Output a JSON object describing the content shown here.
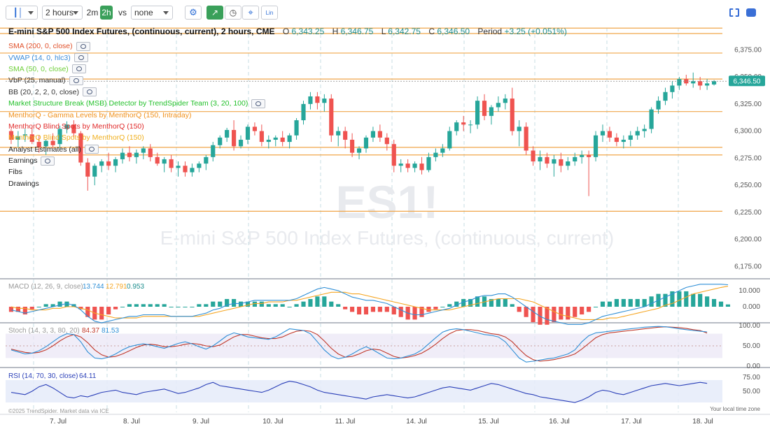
{
  "toolbar": {
    "interval": "2 hours",
    "quick_2m": "2m",
    "quick_2h": "2h",
    "vs_label": "vs",
    "compare": "none",
    "lin": "Lin"
  },
  "header": {
    "title": "E-mini S&P 500 Index Futures, (continuous, current), 2 hours, CME",
    "o_label": "O",
    "o": "6,343.25",
    "h_label": "H",
    "h": "6,346.75",
    "l_label": "L",
    "l": "6,342.75",
    "c_label": "C",
    "c": "6,346.50",
    "period_label": "Period",
    "period": "+3.25 (+0.051%)"
  },
  "indicators": [
    {
      "label": "SMA (200, 0, close)",
      "color": "#e0502a",
      "eye": true
    },
    {
      "label": "VWAP (14, 0, hlc3)",
      "color": "#3a8bd8",
      "eye": true
    },
    {
      "label": "SMA (50, 0, close)",
      "color": "#6fcf3a",
      "eye": true
    },
    {
      "label": "VbP (25, manual)",
      "color": "#333333",
      "eye": true
    },
    {
      "label": "BB (20, 2, 2, 0, close)",
      "color": "#333333",
      "eye": true
    },
    {
      "label": "Market Structure Break (MSB) Detector by TrendSpider Team (3, 20, 100)",
      "color": "#22c02a",
      "eye": true
    },
    {
      "label": "MenthorQ - Gamma Levels by MenthorQ (150, Intraday)",
      "color": "#f0901a",
      "eye": false
    },
    {
      "label": "MenthorQ Blind Spots by MenthorQ (150)",
      "color": "#e02a2a",
      "eye": false
    },
    {
      "label": "MenthorQ Blind Spots by MenthorQ (150)",
      "color": "#f0b020",
      "eye": false
    },
    {
      "label": "Analyst Estimates (all)",
      "color": "#222222",
      "eye": true
    },
    {
      "label": "Earnings",
      "color": "#222222",
      "eye": true
    },
    {
      "label": "Fibs",
      "color": "#222222",
      "eye": false
    },
    {
      "label": "Drawings",
      "color": "#222222",
      "eye": false
    }
  ],
  "watermark": {
    "symbol": "ES1!",
    "name": "E-mini S&P 500 Index Futures, (continuous, current)"
  },
  "panels": {
    "macd": {
      "label": "MACD (12, 26, 9, close)",
      "v1": "13.744",
      "v2": "12.791",
      "v3": "0.953",
      "ticks": [
        "10.000",
        "0.000"
      ]
    },
    "stoch": {
      "label": "Stoch (14, 3, 3, 80, 20)",
      "v1": "84.37",
      "v2": "81.53",
      "ticks": [
        "100.00",
        "50.00",
        "0.00"
      ]
    },
    "rsi": {
      "label": "RSI (14, 70, 30, close)",
      "v1": "64.11",
      "ticks": [
        "75.00",
        "50.00"
      ]
    }
  },
  "credit": "©2025 TrendSpider. Market data via ICE",
  "timezone": "Your local time zone",
  "colors": {
    "up": "#26a69a",
    "down": "#ef5350",
    "gamma": "#f0a64a",
    "macd": "#2f8fd6",
    "signal": "#f5a623",
    "stoch_k": "#2f8fd6",
    "stoch_d": "#c0392b",
    "rsi": "#2a3fb8"
  },
  "chart_data": {
    "type": "candlestick",
    "symbol": "E-mini S&P 500 Index Futures, (continuous, current)",
    "interval": "2 hours",
    "x_ticks": [
      "7. Jul",
      "8. Jul",
      "9. Jul",
      "10. Jul",
      "11. Jul",
      "14. Jul",
      "15. Jul",
      "16. Jul",
      "17. Jul",
      "18. Jul"
    ],
    "y_ticks": [
      "6,375.00",
      "6,350.00",
      "6,325.00",
      "6,300.00",
      "6,275.00",
      "6,250.00",
      "6,225.00",
      "6,200.00",
      "6,175.00"
    ],
    "ylim": [
      6165,
      6390
    ],
    "last_price": "6,346.50",
    "gamma_levels": [
      6395,
      6390,
      6372,
      6348,
      6318,
      6285,
      6278,
      6226
    ],
    "candles": [
      [
        6300,
        6302,
        6288,
        6292
      ],
      [
        6292,
        6300,
        6285,
        6295
      ],
      [
        6296,
        6302,
        6290,
        6297
      ],
      [
        6297,
        6303,
        6288,
        6290
      ],
      [
        6290,
        6296,
        6280,
        6285
      ],
      [
        6286,
        6292,
        6278,
        6291
      ],
      [
        6291,
        6298,
        6284,
        6287
      ],
      [
        6288,
        6305,
        6284,
        6302
      ],
      [
        6302,
        6309,
        6298,
        6306
      ],
      [
        6306,
        6310,
        6294,
        6298
      ],
      [
        6298,
        6300,
        6268,
        6271
      ],
      [
        6271,
        6275,
        6245,
        6258
      ],
      [
        6258,
        6270,
        6250,
        6268
      ],
      [
        6268,
        6274,
        6262,
        6272
      ],
      [
        6272,
        6280,
        6264,
        6268
      ],
      [
        6268,
        6276,
        6262,
        6274
      ],
      [
        6274,
        6284,
        6270,
        6280
      ],
      [
        6280,
        6286,
        6272,
        6276
      ],
      [
        6276,
        6283,
        6270,
        6280
      ],
      [
        6280,
        6286,
        6274,
        6284
      ],
      [
        6284,
        6288,
        6272,
        6276
      ],
      [
        6276,
        6280,
        6268,
        6270
      ],
      [
        6270,
        6276,
        6262,
        6274
      ],
      [
        6274,
        6278,
        6262,
        6266
      ],
      [
        6266,
        6272,
        6258,
        6268
      ],
      [
        6268,
        6272,
        6258,
        6262
      ],
      [
        6262,
        6270,
        6258,
        6266
      ],
      [
        6266,
        6272,
        6262,
        6270
      ],
      [
        6270,
        6278,
        6264,
        6276
      ],
      [
        6276,
        6290,
        6272,
        6287
      ],
      [
        6287,
        6296,
        6284,
        6294
      ],
      [
        6294,
        6303,
        6290,
        6301
      ],
      [
        6301,
        6310,
        6282,
        6286
      ],
      [
        6286,
        6296,
        6284,
        6292
      ],
      [
        6292,
        6306,
        6288,
        6304
      ],
      [
        6304,
        6308,
        6296,
        6300
      ],
      [
        6300,
        6306,
        6286,
        6290
      ],
      [
        6290,
        6296,
        6284,
        6292
      ],
      [
        6292,
        6296,
        6286,
        6294
      ],
      [
        6294,
        6300,
        6286,
        6290
      ],
      [
        6290,
        6298,
        6284,
        6296
      ],
      [
        6296,
        6312,
        6292,
        6310
      ],
      [
        6310,
        6328,
        6306,
        6325
      ],
      [
        6325,
        6336,
        6320,
        6332
      ],
      [
        6332,
        6336,
        6320,
        6326
      ],
      [
        6326,
        6334,
        6318,
        6330
      ],
      [
        6330,
        6334,
        6290,
        6296
      ],
      [
        6296,
        6304,
        6286,
        6300
      ],
      [
        6300,
        6304,
        6284,
        6292
      ],
      [
        6292,
        6298,
        6276,
        6280
      ],
      [
        6280,
        6286,
        6274,
        6284
      ],
      [
        6284,
        6296,
        6280,
        6294
      ],
      [
        6294,
        6304,
        6290,
        6300
      ],
      [
        6300,
        6306,
        6290,
        6294
      ],
      [
        6294,
        6298,
        6282,
        6288
      ],
      [
        6288,
        6292,
        6262,
        6268
      ],
      [
        6268,
        6274,
        6262,
        6270
      ],
      [
        6270,
        6274,
        6262,
        6266
      ],
      [
        6266,
        6272,
        6262,
        6270
      ],
      [
        6270,
        6276,
        6260,
        6264
      ],
      [
        6264,
        6280,
        6262,
        6276
      ],
      [
        6276,
        6284,
        6272,
        6280
      ],
      [
        6280,
        6288,
        6276,
        6284
      ],
      [
        6284,
        6304,
        6282,
        6300
      ],
      [
        6300,
        6310,
        6296,
        6308
      ],
      [
        6308,
        6314,
        6300,
        6306
      ],
      [
        6306,
        6310,
        6298,
        6306
      ],
      [
        6306,
        6332,
        6302,
        6328
      ],
      [
        6328,
        6334,
        6310,
        6314
      ],
      [
        6314,
        6324,
        6306,
        6322
      ],
      [
        6322,
        6332,
        6318,
        6326
      ],
      [
        6326,
        6334,
        6320,
        6330
      ],
      [
        6330,
        6340,
        6296,
        6300
      ],
      [
        6300,
        6310,
        6286,
        6304
      ],
      [
        6304,
        6308,
        6278,
        6282
      ],
      [
        6282,
        6286,
        6268,
        6272
      ],
      [
        6272,
        6282,
        6264,
        6276
      ],
      [
        6276,
        6280,
        6266,
        6270
      ],
      [
        6270,
        6278,
        6258,
        6274
      ],
      [
        6274,
        6280,
        6262,
        6268
      ],
      [
        6268,
        6276,
        6264,
        6272
      ],
      [
        6272,
        6280,
        6268,
        6276
      ],
      [
        6276,
        6282,
        6270,
        6278
      ],
      [
        6278,
        6282,
        6240,
        6276
      ],
      [
        6276,
        6300,
        6272,
        6296
      ],
      [
        6296,
        6306,
        6290,
        6300
      ],
      [
        6300,
        6304,
        6290,
        6294
      ],
      [
        6294,
        6298,
        6286,
        6290
      ],
      [
        6290,
        6296,
        6284,
        6292
      ],
      [
        6292,
        6300,
        6286,
        6296
      ],
      [
        6296,
        6304,
        6292,
        6300
      ],
      [
        6300,
        6306,
        6294,
        6302
      ],
      [
        6302,
        6322,
        6298,
        6320
      ],
      [
        6320,
        6332,
        6316,
        6328
      ],
      [
        6328,
        6340,
        6324,
        6336
      ],
      [
        6336,
        6346,
        6330,
        6342
      ],
      [
        6342,
        6350,
        6338,
        6348
      ],
      [
        6348,
        6352,
        6342,
        6344
      ],
      [
        6344,
        6354,
        6340,
        6346
      ],
      [
        6346,
        6350,
        6338,
        6342
      ],
      [
        6342,
        6348,
        6338,
        6344
      ],
      [
        6343,
        6347,
        6342,
        6346
      ]
    ],
    "macd": [
      -2,
      -3,
      -4,
      -3,
      -2,
      -1,
      0,
      1,
      2,
      1,
      -2,
      -6,
      -9,
      -10,
      -9,
      -8,
      -7,
      -6,
      -6,
      -5,
      -5,
      -5,
      -5,
      -6,
      -6,
      -6,
      -6,
      -5,
      -4,
      -2,
      -1,
      1,
      2,
      2,
      3,
      4,
      4,
      4,
      4,
      4,
      4,
      5,
      7,
      9,
      11,
      12,
      11,
      10,
      8,
      6,
      5,
      4,
      4,
      3,
      2,
      0,
      -2,
      -4,
      -5,
      -5,
      -4,
      -3,
      -2,
      -1,
      1,
      3,
      4,
      6,
      7,
      7,
      8,
      8,
      6,
      3,
      0,
      -3,
      -6,
      -8,
      -9,
      -10,
      -11,
      -11,
      -11,
      -10,
      -8,
      -6,
      -5,
      -4,
      -3,
      -2,
      -1,
      0,
      2,
      4,
      6,
      8,
      10,
      12,
      13,
      14,
      14,
      14,
      14,
      13.7
    ],
    "macd_signal": [
      0,
      -1,
      -1,
      -2,
      -2,
      -2,
      -1,
      -1,
      0,
      0,
      -1,
      -2,
      -4,
      -5,
      -6,
      -7,
      -7,
      -7,
      -7,
      -6,
      -6,
      -6,
      -6,
      -6,
      -6,
      -6,
      -6,
      -6,
      -5,
      -4,
      -3,
      -2,
      -1,
      0,
      1,
      2,
      2,
      3,
      3,
      3,
      4,
      4,
      5,
      6,
      7,
      8,
      9,
      9,
      9,
      8,
      8,
      7,
      6,
      5,
      4,
      3,
      2,
      1,
      0,
      -1,
      -2,
      -2,
      -2,
      -2,
      -1,
      0,
      1,
      2,
      3,
      4,
      5,
      5,
      5,
      5,
      4,
      3,
      1,
      -1,
      -3,
      -5,
      -6,
      -7,
      -8,
      -8,
      -8,
      -8,
      -7,
      -7,
      -6,
      -5,
      -4,
      -3,
      -2,
      -1,
      1,
      2,
      4,
      6,
      8,
      9,
      10,
      11,
      12,
      12.8
    ],
    "stoch_k": [
      40,
      35,
      30,
      32,
      38,
      48,
      60,
      72,
      80,
      78,
      60,
      35,
      20,
      18,
      22,
      30,
      40,
      48,
      52,
      55,
      52,
      48,
      44,
      50,
      56,
      60,
      55,
      48,
      42,
      50,
      62,
      75,
      82,
      78,
      72,
      70,
      68,
      66,
      72,
      82,
      92,
      90,
      88,
      80,
      60,
      40,
      25,
      18,
      22,
      30,
      40,
      48,
      40,
      30,
      20,
      18,
      20,
      25,
      30,
      40,
      55,
      70,
      84,
      90,
      92,
      90,
      86,
      82,
      78,
      76,
      72,
      60,
      40,
      20,
      10,
      12,
      15,
      18,
      20,
      25,
      30,
      40,
      60,
      75,
      82,
      84,
      86,
      88,
      90,
      92,
      94,
      96,
      97,
      98,
      97,
      95,
      92,
      90,
      88,
      86,
      84.4
    ],
    "stoch_d": [
      42,
      38,
      34,
      32,
      34,
      40,
      50,
      62,
      72,
      78,
      72,
      58,
      40,
      28,
      22,
      24,
      30,
      38,
      46,
      52,
      54,
      52,
      48,
      48,
      50,
      54,
      56,
      54,
      50,
      48,
      52,
      62,
      72,
      78,
      78,
      74,
      70,
      68,
      68,
      72,
      80,
      86,
      88,
      86,
      78,
      62,
      44,
      30,
      22,
      24,
      30,
      38,
      42,
      40,
      32,
      24,
      20,
      22,
      26,
      32,
      42,
      54,
      68,
      80,
      88,
      90,
      90,
      88,
      84,
      80,
      78,
      72,
      60,
      42,
      26,
      16,
      12,
      14,
      16,
      20,
      24,
      30,
      42,
      56,
      70,
      78,
      82,
      84,
      86,
      88,
      90,
      92,
      94,
      96,
      97,
      96,
      95,
      93,
      90,
      88,
      81.5
    ],
    "rsi": [
      48,
      46,
      44,
      50,
      58,
      62,
      56,
      48,
      40,
      38,
      42,
      40,
      44,
      48,
      50,
      52,
      48,
      46,
      44,
      48,
      50,
      52,
      54,
      50,
      46,
      48,
      52,
      56,
      62,
      66,
      60,
      58,
      56,
      54,
      52,
      50,
      48,
      52,
      58,
      64,
      68,
      66,
      62,
      58,
      52,
      48,
      46,
      44,
      42,
      40,
      38,
      36,
      40,
      42,
      44,
      42,
      40,
      38,
      40,
      44,
      48,
      52,
      56,
      58,
      56,
      54,
      52,
      56,
      60,
      64,
      62,
      58,
      54,
      50,
      46,
      44,
      40,
      38,
      36,
      34,
      32,
      30,
      34,
      40,
      48,
      52,
      50,
      46,
      44,
      48,
      52,
      56,
      60,
      62,
      64,
      62,
      60,
      62,
      64,
      66,
      64.1
    ]
  }
}
